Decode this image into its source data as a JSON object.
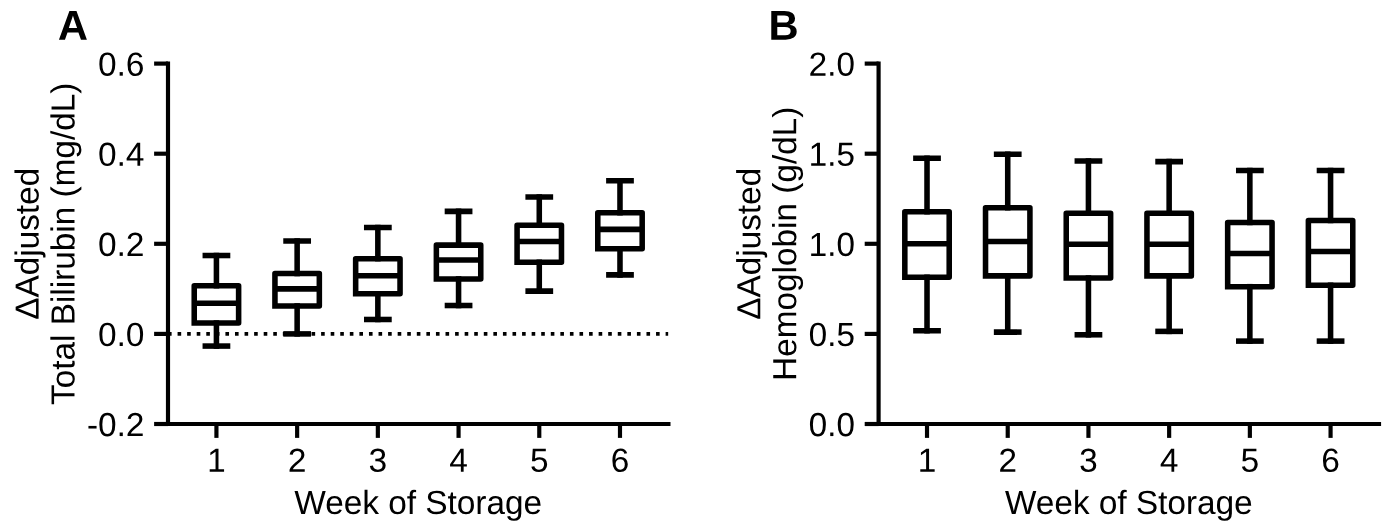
{
  "chart_data": [
    {
      "type": "box",
      "title": "A",
      "xlabel": "Week of Storage",
      "ylabel": "ΔAdjusted\nTotal Bilirubin (mg/dL)",
      "categories": [
        "1",
        "2",
        "3",
        "4",
        "5",
        "6"
      ],
      "color": "#000000",
      "boxes": [
        {
          "low": -0.027,
          "q1": 0.024,
          "median": 0.068,
          "q3": 0.107,
          "high": 0.174
        },
        {
          "low": 0.0,
          "q1": 0.062,
          "median": 0.1,
          "q3": 0.134,
          "high": 0.206
        },
        {
          "low": 0.032,
          "q1": 0.089,
          "median": 0.129,
          "q3": 0.167,
          "high": 0.236
        },
        {
          "low": 0.063,
          "q1": 0.122,
          "median": 0.164,
          "q3": 0.197,
          "high": 0.272
        },
        {
          "low": 0.095,
          "q1": 0.159,
          "median": 0.205,
          "q3": 0.241,
          "high": 0.304
        },
        {
          "low": 0.131,
          "q1": 0.189,
          "median": 0.232,
          "q3": 0.269,
          "high": 0.34
        }
      ],
      "ylim": [
        -0.2,
        0.6
      ],
      "yticks": [
        {
          "value": -0.2,
          "label": "-0.2"
        },
        {
          "value": 0,
          "label": "0.0"
        },
        0.2,
        0.4,
        0.6
      ],
      "ref_lines": [
        {
          "axis": "y",
          "value": 0,
          "label": null,
          "color": "#000000",
          "line_style": "dotted"
        }
      ],
      "grid": false,
      "legend": false
    },
    {
      "type": "box",
      "title": "B",
      "xlabel": "Week of Storage",
      "ylabel": "ΔAdjusted\nHemoglobin (g/dL)",
      "categories": [
        "1",
        "2",
        "3",
        "4",
        "5",
        "6"
      ],
      "color": "#000000",
      "boxes": [
        {
          "low": 0.518,
          "q1": 0.814,
          "median": 1.0,
          "q3": 1.178,
          "high": 1.475
        },
        {
          "low": 0.51,
          "q1": 0.822,
          "median": 1.013,
          "q3": 1.2,
          "high": 1.497
        },
        {
          "low": 0.495,
          "q1": 0.81,
          "median": 0.998,
          "q3": 1.17,
          "high": 1.46
        },
        {
          "low": 0.514,
          "q1": 0.822,
          "median": 0.998,
          "q3": 1.17,
          "high": 1.456
        },
        {
          "low": 0.46,
          "q1": 0.762,
          "median": 0.946,
          "q3": 1.118,
          "high": 1.407
        },
        {
          "low": 0.46,
          "q1": 0.77,
          "median": 0.957,
          "q3": 1.129,
          "high": 1.407
        }
      ],
      "ylim": [
        0,
        2.0
      ],
      "yticks": [
        {
          "value": 0,
          "label": "0.0"
        },
        0.5,
        {
          "value": 1.0,
          "label": "1.0"
        },
        1.5,
        {
          "value": 2.0,
          "label": "2.0"
        }
      ],
      "grid": false,
      "legend": false
    }
  ]
}
